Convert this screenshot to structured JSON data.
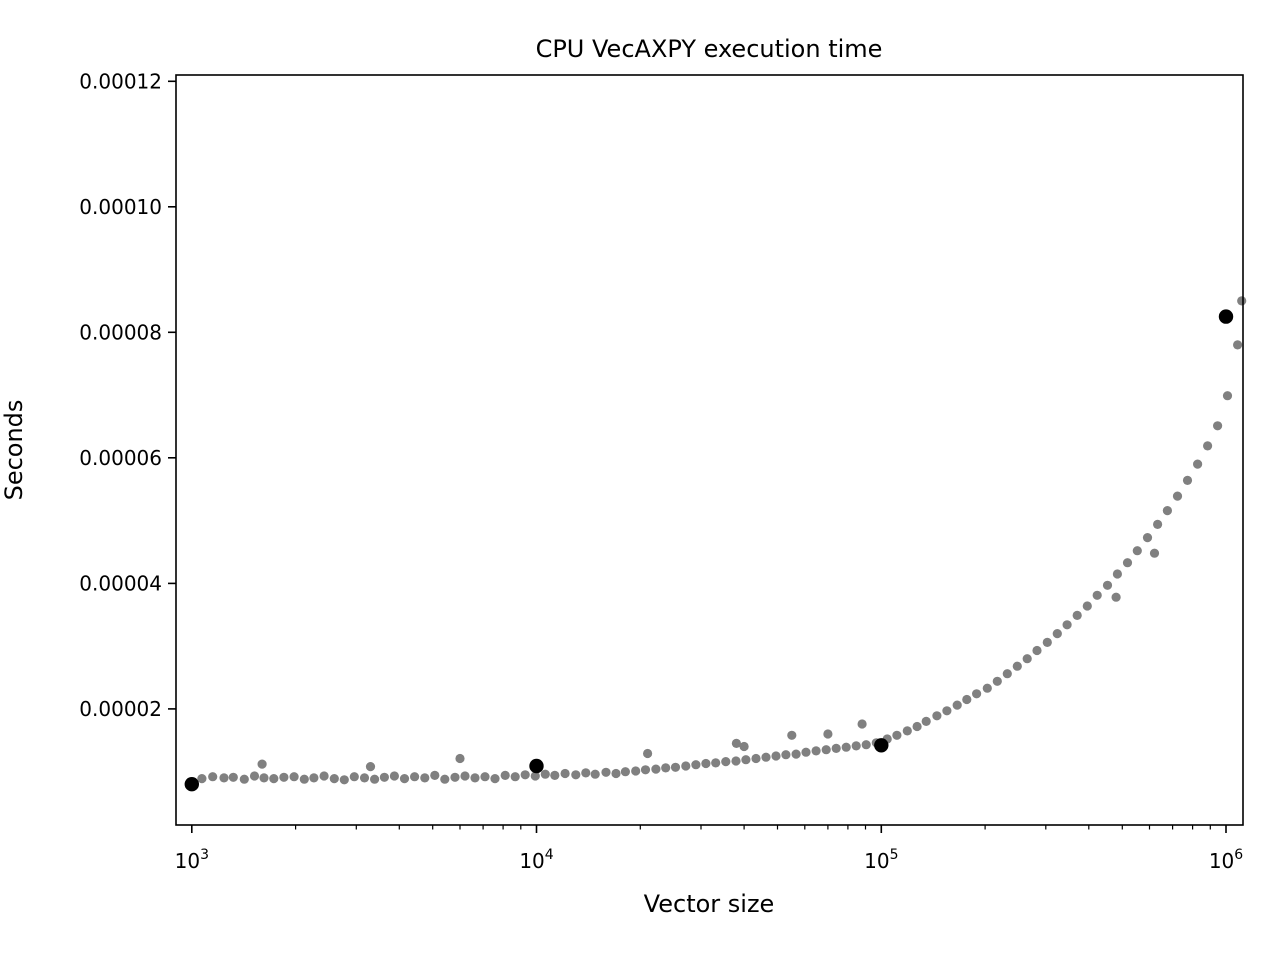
{
  "chart_data": {
    "type": "scatter",
    "title": "CPU VecAXPY execution time",
    "xlabel": "Vector size",
    "ylabel": "Seconds",
    "x_scale": "log",
    "y_scale": "linear",
    "xlim": [
      900,
      1120000
    ],
    "ylim": [
      1.5e-06,
      0.000121
    ],
    "x_ticks": [
      {
        "value": 1000,
        "base": "10",
        "exp": "3"
      },
      {
        "value": 10000,
        "base": "10",
        "exp": "4"
      },
      {
        "value": 100000,
        "base": "10",
        "exp": "5"
      },
      {
        "value": 1000000,
        "base": "10",
        "exp": "6"
      }
    ],
    "y_ticks": [
      {
        "value": 2e-05,
        "label": "0.00002"
      },
      {
        "value": 4e-05,
        "label": "0.00004"
      },
      {
        "value": 6e-05,
        "label": "0.00006"
      },
      {
        "value": 8e-05,
        "label": "0.00008"
      },
      {
        "value": 0.0001,
        "label": "0.00010"
      },
      {
        "value": 0.00012,
        "label": "0.00012"
      }
    ],
    "grid": false,
    "legend": "none",
    "series": [
      {
        "color": "#808080",
        "marker": "dot",
        "x": [
          1070,
          1150,
          1240,
          1320,
          1420,
          1520,
          1620,
          1730,
          1850,
          1980,
          2120,
          2260,
          2420,
          2590,
          2770,
          2960,
          3170,
          3390,
          3620,
          3870,
          4140,
          4430,
          4740,
          5070,
          5420,
          5800,
          6200,
          6630,
          7090,
          7580,
          8110,
          8670,
          9270,
          9920,
          10600,
          11300,
          12100,
          13000,
          13900,
          14800,
          15900,
          17000,
          18100,
          19400,
          20700,
          22200,
          23700,
          25300,
          27100,
          29000,
          31000,
          33100,
          35400,
          37900,
          40500,
          43300,
          46300,
          49500,
          52900,
          56600,
          60500,
          64700,
          69200,
          74000,
          79100,
          84600,
          90400,
          96700,
          104000,
          111000,
          119000,
          127000,
          135000,
          145000,
          155000,
          166000,
          177000,
          189000,
          203000,
          217000,
          232000,
          248000,
          265000,
          283000,
          303000,
          324000,
          346000,
          370000,
          396000,
          423000,
          453000,
          484000,
          518000,
          553000,
          592000,
          633000,
          676000,
          723000,
          773000,
          827000,
          884000,
          945000,
          1010000,
          1080000,
          1110000,
          1600,
          3300,
          6000,
          21000,
          38000,
          40000,
          55000,
          70000,
          88000,
          620000,
          480000
        ],
        "y": [
          8.9e-06,
          9.2e-06,
          9e-06,
          9.1e-06,
          8.8e-06,
          9.3e-06,
          9e-06,
          8.9e-06,
          9.1e-06,
          9.2e-06,
          8.8e-06,
          9e-06,
          9.3e-06,
          8.9e-06,
          8.7e-06,
          9.2e-06,
          9e-06,
          8.8e-06,
          9.1e-06,
          9.3e-06,
          8.9e-06,
          9.2e-06,
          9e-06,
          9.4e-06,
          8.8e-06,
          9.1e-06,
          9.3e-06,
          9e-06,
          9.2e-06,
          8.9e-06,
          9.4e-06,
          9.2e-06,
          9.5e-06,
          9.3e-06,
          9.6e-06,
          9.4e-06,
          9.7e-06,
          9.5e-06,
          9.8e-06,
          9.6e-06,
          9.9e-06,
          9.7e-06,
          1e-05,
          1.01e-05,
          1.03e-05,
          1.04e-05,
          1.06e-05,
          1.07e-05,
          1.09e-05,
          1.11e-05,
          1.13e-05,
          1.14e-05,
          1.16e-05,
          1.17e-05,
          1.19e-05,
          1.21e-05,
          1.23e-05,
          1.25e-05,
          1.27e-05,
          1.28e-05,
          1.31e-05,
          1.33e-05,
          1.35e-05,
          1.37e-05,
          1.39e-05,
          1.41e-05,
          1.43e-05,
          1.46e-05,
          1.52e-05,
          1.58e-05,
          1.65e-05,
          1.72e-05,
          1.8e-05,
          1.89e-05,
          1.97e-05,
          2.06e-05,
          2.15e-05,
          2.24e-05,
          2.33e-05,
          2.44e-05,
          2.56e-05,
          2.68e-05,
          2.8e-05,
          2.93e-05,
          3.06e-05,
          3.2e-05,
          3.34e-05,
          3.49e-05,
          3.64e-05,
          3.81e-05,
          3.97e-05,
          4.15e-05,
          4.33e-05,
          4.52e-05,
          4.73e-05,
          4.94e-05,
          5.16e-05,
          5.39e-05,
          5.64e-05,
          5.9e-05,
          6.19e-05,
          6.51e-05,
          6.99e-05,
          7.8e-05,
          8.5e-05,
          1.12e-05,
          1.08e-05,
          1.21e-05,
          1.29e-05,
          1.45e-05,
          1.4e-05,
          1.58e-05,
          1.6e-05,
          1.76e-05,
          4.48e-05,
          3.78e-05
        ]
      },
      {
        "color": "#000000",
        "marker": "dot",
        "x": [
          1000,
          10000,
          100000,
          1000000
        ],
        "y": [
          8e-06,
          1.09e-05,
          1.42e-05,
          8.25e-05
        ]
      }
    ]
  }
}
